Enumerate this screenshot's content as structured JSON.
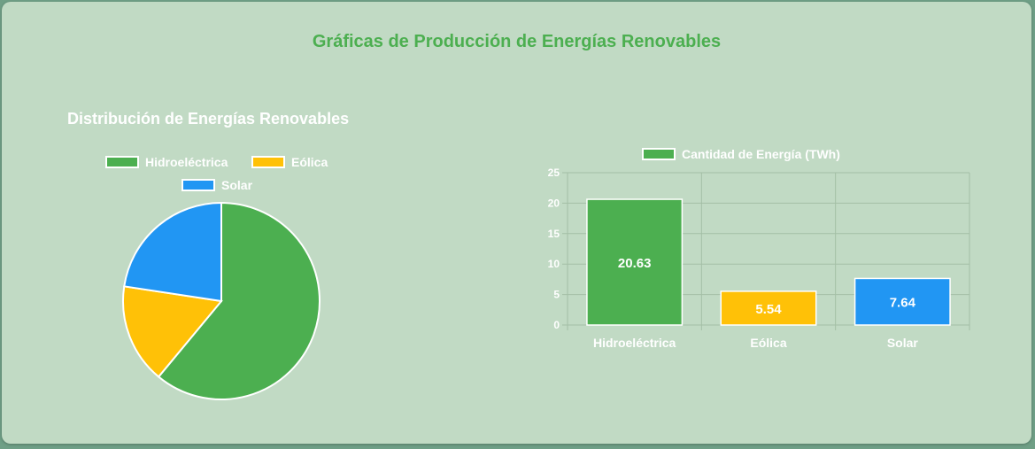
{
  "page": {
    "title": "Gráficas de Producción de Energías Renovables"
  },
  "colors": {
    "accent": "#4caf50",
    "hidro": "#4caf50",
    "eolica": "#ffc107",
    "solar": "#2196f3",
    "panel": "#c1dac4"
  },
  "pie": {
    "title": "Distribución de Energías Renovables",
    "legend": [
      {
        "label": "Hidroeléctrica",
        "color": "#4caf50"
      },
      {
        "label": "Eólica",
        "color": "#ffc107"
      },
      {
        "label": "Solar",
        "color": "#2196f3"
      }
    ]
  },
  "bar": {
    "legend_label": "Cantidad de Energía (TWh)"
  },
  "chart_data": [
    {
      "type": "pie",
      "title": "Distribución de Energías Renovables",
      "categories": [
        "Hidroeléctrica",
        "Eólica",
        "Solar"
      ],
      "values": [
        20.63,
        5.54,
        7.64
      ],
      "colors": [
        "#4caf50",
        "#ffc107",
        "#2196f3"
      ],
      "legend": "top"
    },
    {
      "type": "bar",
      "categories": [
        "Hidroeléctrica",
        "Eólica",
        "Solar"
      ],
      "series": [
        {
          "name": "Cantidad de Energía (TWh)",
          "values": [
            20.63,
            5.54,
            7.64
          ]
        }
      ],
      "data_labels": [
        "20.63",
        "5.54",
        "7.64"
      ],
      "colors": [
        "#4caf50",
        "#ffc107",
        "#2196f3"
      ],
      "ylim": [
        0,
        25
      ],
      "yticks": [
        0,
        5,
        10,
        15,
        20,
        25
      ],
      "grid": true,
      "legend": "top"
    }
  ]
}
